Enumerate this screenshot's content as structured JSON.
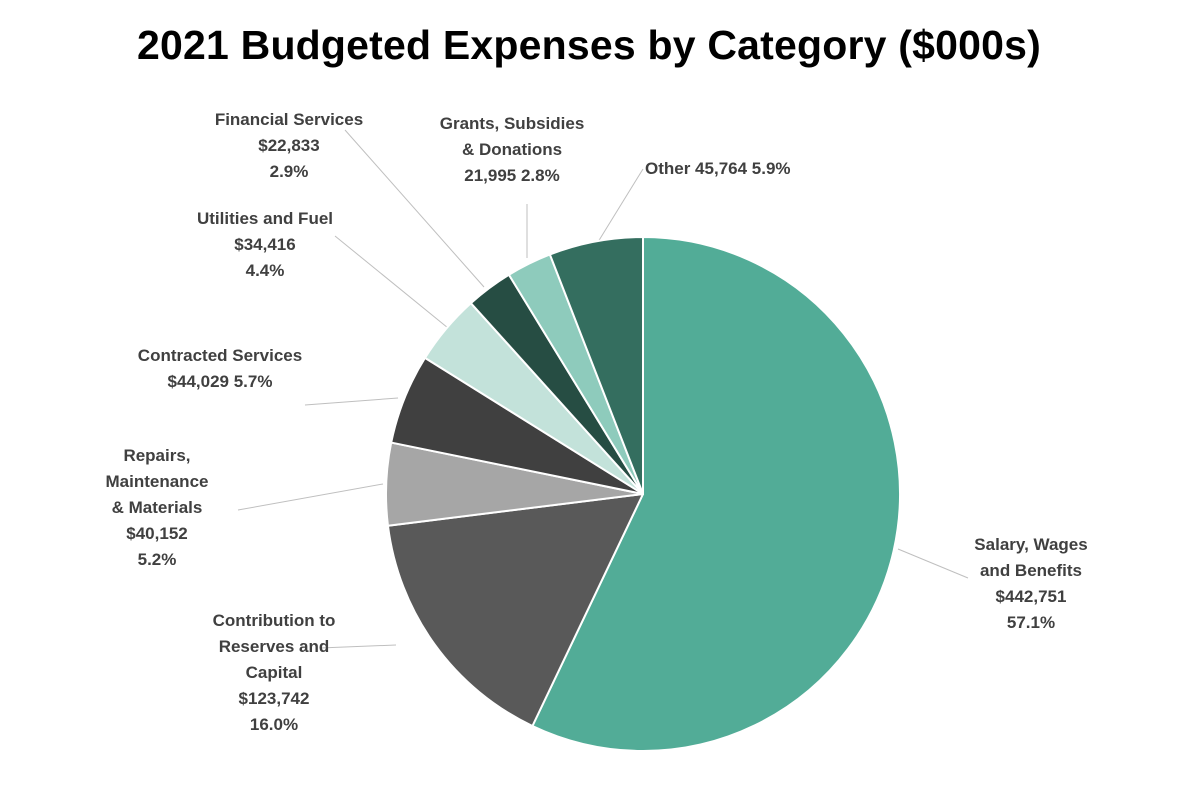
{
  "chart_data": {
    "type": "pie",
    "title": "2021 Budgeted Expenses by Category ($000s)",
    "units": "$000s",
    "slices": [
      {
        "name": "Salary, Wages and Benefits",
        "value": 442751,
        "percent": 57.1,
        "color": "#52AC97",
        "label_lines": [
          "Salary, Wages",
          "and Benefits",
          "$442,751",
          "57.1%"
        ]
      },
      {
        "name": "Contribution to Reserves and Capital",
        "value": 123742,
        "percent": 16.0,
        "color": "#595959",
        "label_lines": [
          "Contribution  to",
          "Reserves and",
          "Capital",
          "$123,742",
          "16.0%"
        ]
      },
      {
        "name": "Repairs, Maintenance & Materials",
        "value": 40152,
        "percent": 5.2,
        "color": "#A6A6A6",
        "label_lines": [
          "Repairs,",
          "Maintenance",
          "& Materials",
          "$40,152",
          "5.2%"
        ]
      },
      {
        "name": "Contracted Services",
        "value": 44029,
        "percent": 5.7,
        "color": "#404040",
        "label_lines": [
          "Contracted Services",
          "$44,029  5.7%"
        ]
      },
      {
        "name": "Utilities and Fuel",
        "value": 34416,
        "percent": 4.4,
        "color": "#C3E2DA",
        "label_lines": [
          "Utilities and Fuel",
          "$34,416",
          "4.4%"
        ]
      },
      {
        "name": "Financial Services",
        "value": 22833,
        "percent": 2.9,
        "color": "#264D43",
        "label_lines": [
          "Financial Services",
          "$22,833",
          "2.9%"
        ]
      },
      {
        "name": "Grants, Subsidies & Donations",
        "value": 21995,
        "percent": 2.8,
        "color": "#8ECBBC",
        "label_lines": [
          "Grants, Subsidies",
          "& Donations",
          "21,995  2.8%"
        ]
      },
      {
        "name": "Other",
        "value": 45764,
        "percent": 5.9,
        "color": "#346E5F",
        "label_lines": [
          "Other 45,764  5.9%"
        ]
      }
    ],
    "start_angle": "12 o'clock",
    "direction": "clockwise",
    "legend": "none"
  }
}
